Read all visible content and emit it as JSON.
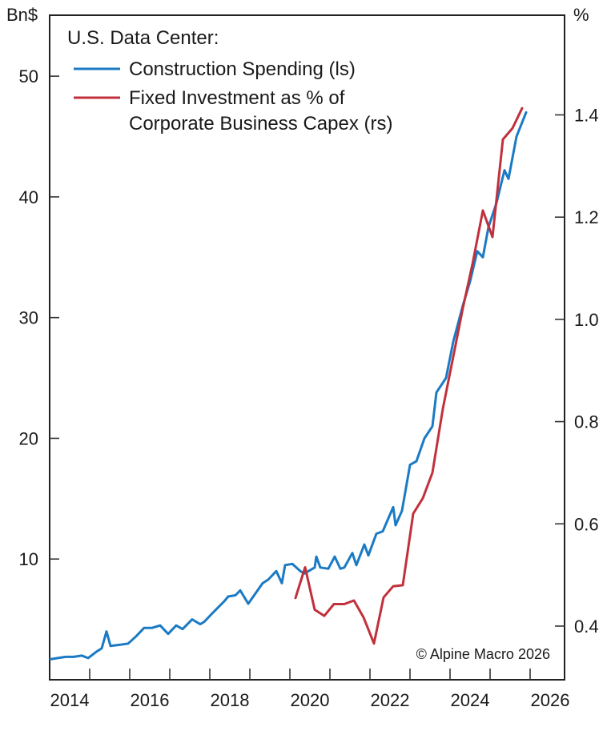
{
  "chart_data": {
    "type": "line",
    "title": "U.S. Data Center:",
    "source": "© Alpine Macro 2026",
    "legend_position": "top-left",
    "grid": false,
    "x_axis": {
      "ticks": [
        "2014",
        "2016",
        "2018",
        "2020",
        "2022",
        "2024",
        "2026"
      ],
      "range": [
        2014.0,
        2026.86
      ]
    },
    "y_left": {
      "unit": "Bn$",
      "ticks": [
        "10",
        "20",
        "30",
        "40",
        "50"
      ],
      "tick_values": [
        10,
        20,
        30,
        40,
        50
      ],
      "range": [
        0,
        55.05
      ]
    },
    "y_right": {
      "unit": "%",
      "ticks": [
        "0.4",
        "0.6",
        "0.8",
        "1.0",
        "1.2",
        "1.4"
      ],
      "tick_values": [
        0.4,
        0.6,
        0.8,
        1.0,
        1.2,
        1.4
      ],
      "range": [
        0.295,
        1.595
      ]
    },
    "series": [
      {
        "name": "Construction Spending (ls)",
        "axis": "left",
        "color": "#1a7ac4",
        "x": [
          2014.02,
          2014.2,
          2014.4,
          2014.6,
          2014.8,
          2014.96,
          2015.16,
          2015.3,
          2015.42,
          2015.52,
          2015.76,
          2015.96,
          2016.16,
          2016.36,
          2016.56,
          2016.76,
          2016.96,
          2017.16,
          2017.32,
          2017.56,
          2017.76,
          2017.86,
          2018.06,
          2018.36,
          2018.46,
          2018.64,
          2018.76,
          2018.96,
          2019.32,
          2019.46,
          2019.66,
          2019.8,
          2019.88,
          2020.06,
          2020.26,
          2020.36,
          2020.62,
          2020.66,
          2020.76,
          2020.96,
          2021.12,
          2021.26,
          2021.36,
          2021.56,
          2021.66,
          2021.86,
          2021.96,
          2022.16,
          2022.32,
          2022.58,
          2022.64,
          2022.8,
          2023.0,
          2023.16,
          2023.36,
          2023.56,
          2023.66,
          2023.9,
          2024.08,
          2024.32,
          2024.5,
          2024.68,
          2024.82,
          2024.96,
          2025.16,
          2025.36,
          2025.46,
          2025.66,
          2025.9
        ],
        "values": [
          1.7,
          1.8,
          1.9,
          1.9,
          2.0,
          1.8,
          2.3,
          2.6,
          4.0,
          2.8,
          2.9,
          3.0,
          3.6,
          4.3,
          4.3,
          4.5,
          3.8,
          4.5,
          4.2,
          5.0,
          4.6,
          4.8,
          5.5,
          6.5,
          6.9,
          7.0,
          7.4,
          6.3,
          8.0,
          8.3,
          9.0,
          8.0,
          9.5,
          9.6,
          9.0,
          8.8,
          9.3,
          10.2,
          9.3,
          9.2,
          10.2,
          9.2,
          9.3,
          10.5,
          9.5,
          11.2,
          10.3,
          12.1,
          12.3,
          14.3,
          12.8,
          14.0,
          17.8,
          18.1,
          20.0,
          21.0,
          23.8,
          25.0,
          28.0,
          31.0,
          33.0,
          35.5,
          35.0,
          37.5,
          39.5,
          42.2,
          41.5,
          45.0,
          47.0
        ]
      },
      {
        "name": "Fixed Investment as % of Corporate Business Capex (rs)",
        "axis": "right",
        "color": "#c0313c",
        "x": [
          2020.14,
          2020.38,
          2020.62,
          2020.86,
          2021.1,
          2021.36,
          2021.6,
          2021.84,
          2022.1,
          2022.34,
          2022.58,
          2022.82,
          2023.08,
          2023.32,
          2023.56,
          2023.82,
          2024.06,
          2024.32,
          2024.56,
          2024.82,
          2025.06,
          2025.32,
          2025.56,
          2025.8
        ],
        "values": [
          0.455,
          0.515,
          0.432,
          0.42,
          0.443,
          0.443,
          0.45,
          0.417,
          0.366,
          0.456,
          0.478,
          0.48,
          0.62,
          0.65,
          0.7,
          0.825,
          0.919,
          1.022,
          1.108,
          1.213,
          1.161,
          1.352,
          1.374,
          1.413
        ]
      }
    ]
  },
  "legend": {
    "title": "U.S. Data Center:",
    "items": [
      {
        "label": "Construction Spending (ls)",
        "color": "#1a7ac4"
      },
      {
        "label_line1": "Fixed Investment as % of",
        "label_line2": "Corporate Business Capex (rs)",
        "color": "#c0313c"
      }
    ]
  }
}
